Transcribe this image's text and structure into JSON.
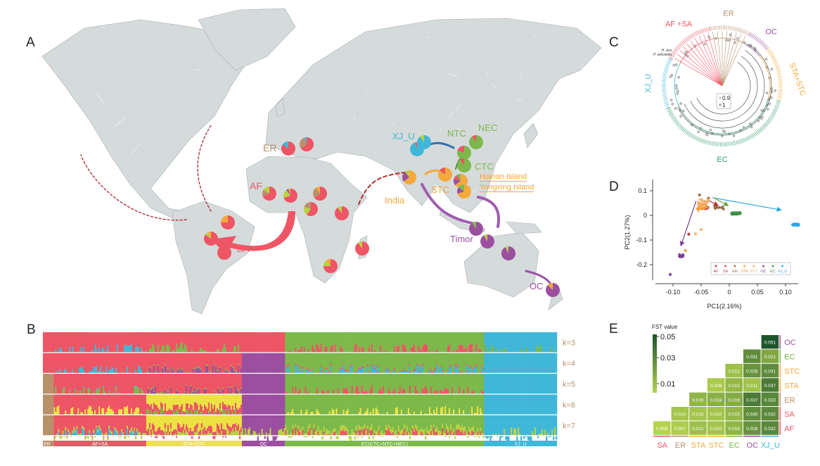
{
  "colors": {
    "AF": "#ee5565",
    "SA": "#ee5565",
    "ER": "#b8906a",
    "STA": "#f4a93a",
    "STC": "#f4a93a",
    "OC": "#9c4fa0",
    "EC": "#7cb84a",
    "XJ_U": "#3fb7d8",
    "yellow": "#ece342",
    "lime": "#b9d23f",
    "brown": "#b08a66",
    "land": "#d5dadb"
  },
  "panels": {
    "A": "A",
    "B": "B",
    "C": "C",
    "D": "D",
    "E": "E"
  },
  "map": {
    "labels": {
      "ER": "ER",
      "AF": "AF",
      "SA": "SA",
      "XJ_U": "XJ_U",
      "NTC": "NTC",
      "NEC": "NEC",
      "CTC": "CTC",
      "STC": "STC",
      "hainan": "Hainan Island",
      "yongxing": "Yongxing Island",
      "india": "India",
      "timor": "Timor",
      "OC": "OC"
    },
    "pies": [
      {
        "region": "ER",
        "slices": [
          [
            "AF",
            0.85
          ],
          [
            "XJ_U",
            0.15
          ]
        ]
      },
      {
        "region": "ER",
        "slices": [
          [
            "AF",
            0.65
          ],
          [
            "ER",
            0.3
          ],
          [
            "XJ_U",
            0.05
          ]
        ]
      },
      {
        "region": "AF",
        "slices": [
          [
            "AF",
            0.7
          ],
          [
            "ER",
            0.15
          ],
          [
            "lime",
            0.15
          ]
        ]
      },
      {
        "region": "AF",
        "slices": [
          [
            "AF",
            0.7
          ],
          [
            "lime",
            0.2
          ],
          [
            "OC",
            0.05
          ],
          [
            "STA",
            0.05
          ]
        ]
      },
      {
        "region": "AF",
        "slices": [
          [
            "AF",
            0.65
          ],
          [
            "ER",
            0.25
          ],
          [
            "STA",
            0.1
          ]
        ]
      },
      {
        "region": "AF",
        "slices": [
          [
            "AF",
            0.6
          ],
          [
            "lime",
            0.2
          ],
          [
            "ER",
            0.2
          ]
        ]
      },
      {
        "region": "AF",
        "slices": [
          [
            "AF",
            0.9
          ],
          [
            "lime",
            0.1
          ]
        ]
      },
      {
        "region": "SA",
        "slices": [
          [
            "AF",
            0.75
          ],
          [
            "STA",
            0.25
          ]
        ]
      },
      {
        "region": "SA",
        "slices": [
          [
            "AF",
            0.85
          ],
          [
            "lime",
            0.08
          ],
          [
            "STA",
            0.07
          ]
        ]
      },
      {
        "region": "SA",
        "slices": [
          [
            "AF",
            1.0
          ]
        ]
      },
      {
        "region": "AF",
        "slices": [
          [
            "AF",
            0.9
          ],
          [
            "lime",
            0.1
          ]
        ]
      },
      {
        "region": "AF",
        "slices": [
          [
            "AF",
            0.75
          ],
          [
            "lime",
            0.15
          ],
          [
            "STA",
            0.1
          ]
        ]
      },
      {
        "region": "XJ_U",
        "slices": [
          [
            "XJ_U",
            0.95
          ],
          [
            "AF",
            0.05
          ]
        ]
      },
      {
        "region": "XJ_U",
        "slices": [
          [
            "XJ_U",
            0.9
          ],
          [
            "lime",
            0.1
          ]
        ]
      },
      {
        "region": "NEC",
        "slices": [
          [
            "EC",
            0.9
          ],
          [
            "AF",
            0.1
          ]
        ]
      },
      {
        "region": "NTC",
        "slices": [
          [
            "EC",
            0.8
          ],
          [
            "AF",
            0.2
          ]
        ]
      },
      {
        "region": "CTC",
        "slices": [
          [
            "EC",
            0.9
          ],
          [
            "AF",
            0.1
          ]
        ]
      },
      {
        "region": "STC",
        "slices": [
          [
            "STA",
            0.85
          ],
          [
            "AF",
            0.15
          ]
        ]
      },
      {
        "region": "STC",
        "slices": [
          [
            "STA",
            0.65
          ],
          [
            "OC",
            0.15
          ],
          [
            "AF",
            0.1
          ],
          [
            "EC",
            0.1
          ]
        ]
      },
      {
        "region": "STC",
        "slices": [
          [
            "STA",
            0.7
          ],
          [
            "OC",
            0.15
          ],
          [
            "EC",
            0.15
          ]
        ]
      },
      {
        "region": "India",
        "slices": [
          [
            "STA",
            0.65
          ],
          [
            "OC",
            0.25
          ],
          [
            "lime",
            0.1
          ]
        ]
      },
      {
        "region": "Timor",
        "slices": [
          [
            "OC",
            0.9
          ],
          [
            "EC",
            0.1
          ]
        ]
      },
      {
        "region": "OC",
        "slices": [
          [
            "OC",
            0.92
          ],
          [
            "lime",
            0.08
          ]
        ]
      },
      {
        "region": "OC",
        "slices": [
          [
            "OC",
            0.93
          ],
          [
            "lime",
            0.07
          ]
        ]
      },
      {
        "region": "OC",
        "slices": [
          [
            "OC",
            0.88
          ],
          [
            "STA",
            0.12
          ]
        ]
      }
    ]
  },
  "structure": {
    "k_labels": [
      "k=3",
      "k=4",
      "k=5",
      "k=6",
      "k=7"
    ],
    "groups": [
      {
        "label": "ER",
        "frac": 0.021,
        "color": "ER"
      },
      {
        "label": "AF+SA",
        "frac": 0.18,
        "color": "AF"
      },
      {
        "label": "STA+STC",
        "frac": 0.186,
        "color": "yellow"
      },
      {
        "label": "OC",
        "frac": 0.084,
        "color": "OC"
      },
      {
        "label": "EC(CTC+NTC+NEC)",
        "frac": 0.387,
        "color": "EC"
      },
      {
        "label": "XJ_U",
        "frac": 0.142,
        "color": "XJ_U"
      }
    ],
    "k": [
      [
        [
          [
            "AF",
            1
          ]
        ],
        [
          [
            "AF",
            0.97
          ],
          [
            "XJ_U",
            0.03
          ]
        ],
        [
          [
            "AF",
            0.88
          ],
          [
            "EC",
            0.12
          ]
        ],
        [
          [
            "AF",
            1
          ]
        ],
        [
          [
            "EC",
            0.92
          ],
          [
            "AF",
            0.08
          ]
        ],
        [
          [
            "XJ_U",
            0.98
          ],
          [
            "EC",
            0.02
          ]
        ]
      ],
      [
        [
          [
            "AF",
            1
          ]
        ],
        [
          [
            "AF",
            0.98
          ],
          [
            "XJ_U",
            0.02
          ]
        ],
        [
          [
            "AF",
            0.9
          ],
          [
            "EC",
            0.05
          ],
          [
            "OC",
            0.05
          ]
        ],
        [
          [
            "OC",
            1
          ]
        ],
        [
          [
            "EC",
            0.85
          ],
          [
            "AF",
            0.08
          ],
          [
            "XJ_U",
            0.07
          ]
        ],
        [
          [
            "XJ_U",
            1
          ]
        ]
      ],
      [
        [
          [
            "ER",
            1
          ]
        ],
        [
          [
            "AF",
            0.93
          ],
          [
            "XJ_U",
            0.04
          ],
          [
            "EC",
            0.03
          ]
        ],
        [
          [
            "AF",
            0.9
          ],
          [
            "EC",
            0.05
          ],
          [
            "OC",
            0.05
          ]
        ],
        [
          [
            "OC",
            1
          ]
        ],
        [
          [
            "EC",
            0.94
          ],
          [
            "AF",
            0.06
          ]
        ],
        [
          [
            "XJ_U",
            1
          ]
        ]
      ],
      [
        [
          [
            "ER",
            1
          ]
        ],
        [
          [
            "AF",
            0.9
          ],
          [
            "yellow",
            0.1
          ]
        ],
        [
          [
            "yellow",
            0.6
          ],
          [
            "AF",
            0.35
          ],
          [
            "EC",
            0.05
          ]
        ],
        [
          [
            "OC",
            1
          ]
        ],
        [
          [
            "EC",
            0.95
          ],
          [
            "yellow",
            0.05
          ]
        ],
        [
          [
            "XJ_U",
            1
          ]
        ]
      ],
      [
        [
          [
            "ER",
            1
          ]
        ],
        [
          [
            "AF",
            0.8
          ],
          [
            "lime",
            0.12
          ],
          [
            "XJ_U",
            0.08
          ]
        ],
        [
          [
            "yellow",
            0.6
          ],
          [
            "AF",
            0.3
          ],
          [
            "lime",
            0.1
          ]
        ],
        [
          [
            "OC",
            0.95
          ],
          [
            "lime",
            0.05
          ]
        ],
        [
          [
            "EC",
            0.7
          ],
          [
            "lime",
            0.22
          ],
          [
            "AF",
            0.08
          ]
        ],
        [
          [
            "XJ_U",
            0.93
          ],
          [
            "lime",
            0.07
          ]
        ]
      ]
    ]
  },
  "tree": {
    "clades": [
      {
        "label": "AF +SA",
        "color": "AF"
      },
      {
        "label": "ER",
        "color": "ER"
      },
      {
        "label": "OC",
        "color": "OC"
      },
      {
        "label": "STA+STC",
        "color": "STA"
      },
      {
        "label": "EC",
        "color": "#2e9a6a"
      },
      {
        "label": "XJ_U",
        "color": "XJ_U"
      }
    ],
    "outgroups": [
      "H. zea",
      "P. xylostella"
    ],
    "legend": [
      "0.9",
      "1"
    ]
  },
  "chart_data": [
    {
      "type": "scatter",
      "title": "",
      "xlabel": "PC1(2.16%)",
      "ylabel": "PC2(1.27%)",
      "xlim": [
        -0.13,
        0.135
      ],
      "ylim": [
        -0.25,
        0.14
      ],
      "xticks": [
        "-0.10",
        "-0.05",
        "0",
        "0.05",
        "0.10"
      ],
      "xtick_values": [
        -0.1,
        -0.05,
        0,
        0.05,
        0.1
      ],
      "yticks": [
        "0.1",
        "0",
        "-0.1",
        "-0.2"
      ],
      "ytick_values": [
        0.1,
        0,
        -0.1,
        -0.2
      ],
      "legend": [
        "AF",
        "SA",
        "ER",
        "STA",
        "STC",
        "OC",
        "EC",
        "XJ_U"
      ],
      "legend_position": "bottom-right",
      "series": [
        {
          "name": "AF",
          "color": "#c0303a",
          "center": [
            -0.045,
            0.03
          ],
          "spread": [
            0.006,
            0.01
          ],
          "n": 10,
          "extra": [
            [
              -0.072,
              -0.076
            ]
          ]
        },
        {
          "name": "SA",
          "color": "#e0455a",
          "center": [
            -0.043,
            0.035
          ],
          "spread": [
            0.006,
            0.01
          ],
          "n": 14
        },
        {
          "name": "ER",
          "color": "#9a6a3a",
          "center": [
            -0.018,
            0.03
          ],
          "spread": [
            0.008,
            0.005
          ],
          "n": 10,
          "extra": [
            [
              -0.053,
              0.083
            ],
            [
              -0.037,
              0.07
            ]
          ]
        },
        {
          "name": "STA",
          "color": "#f0a030",
          "center": [
            -0.048,
            0.04
          ],
          "spread": [
            0.008,
            0.015
          ],
          "n": 20,
          "extra": [
            [
              -0.078,
              -0.143
            ]
          ]
        },
        {
          "name": "STC",
          "color": "#f5b070",
          "center": [
            -0.046,
            0.05
          ],
          "spread": [
            0.008,
            0.015
          ],
          "n": 20,
          "extra": [
            [
              -0.06,
              -0.075
            ],
            [
              -0.05,
              -0.057
            ]
          ]
        },
        {
          "name": "OC",
          "color": "#7a3d9a",
          "center": [
            -0.085,
            -0.163
          ],
          "spread": [
            0.004,
            0.006
          ],
          "n": 12,
          "extra": [
            [
              -0.105,
              -0.24
            ]
          ]
        },
        {
          "name": "EC",
          "color": "#3f8f4a",
          "center": [
            0.012,
            0.008
          ],
          "spread": [
            0.008,
            0.004
          ],
          "n": 40
        },
        {
          "name": "XJ_U",
          "color": "#2aa8e0",
          "center": [
            0.118,
            -0.038
          ],
          "spread": [
            0.006,
            0.004
          ],
          "n": 35
        }
      ],
      "arrows": [
        {
          "from": [
            -0.03,
            0.072
          ],
          "to": [
            0.092,
            0.022
          ],
          "color": "#2aa8e0"
        },
        {
          "from": [
            -0.028,
            0.072
          ],
          "to": [
            -0.002,
            0.04
          ],
          "color": "#6aaa40"
        },
        {
          "from": [
            -0.036,
            0.06
          ],
          "to": [
            -0.02,
            0.04
          ],
          "color": "#c0303a"
        },
        {
          "from": [
            -0.059,
            0.058
          ],
          "to": [
            -0.086,
            -0.123
          ],
          "color": "#7a3d9a"
        },
        {
          "from": [
            -0.056,
            0.06
          ],
          "to": [
            -0.055,
            0.015
          ],
          "color": "#f0a030"
        }
      ]
    },
    {
      "type": "heatmap",
      "title": "FST value",
      "colorbar_ticks": [
        "0.05",
        "0.03",
        "0.01"
      ],
      "colorbar_range": [
        0.005,
        0.051
      ],
      "rows": [
        "OC",
        "EC",
        "STC",
        "STA",
        "ER",
        "SA",
        "AF"
      ],
      "columns": [
        "SA",
        "ER",
        "STA",
        "STC",
        "EC",
        "OC",
        "XJ_U"
      ],
      "values": [
        [
          null,
          null,
          null,
          null,
          null,
          null,
          0.051
        ],
        [
          null,
          null,
          null,
          null,
          null,
          0.031,
          0.021
        ],
        [
          null,
          null,
          null,
          null,
          0.012,
          0.028,
          0.031
        ],
        [
          null,
          null,
          null,
          0.008,
          0.015,
          0.011,
          0.037
        ],
        [
          null,
          null,
          0.016,
          0.018,
          0.019,
          0.037,
          0.033
        ],
        [
          null,
          0.01,
          0.01,
          0.01,
          0.015,
          0.03,
          0.032
        ],
        [
          0.005,
          0.007,
          0.012,
          0.01,
          0.016,
          0.028,
          0.032
        ]
      ],
      "labels": [
        [
          null,
          null,
          null,
          null,
          null,
          null,
          "0.051"
        ],
        [
          null,
          null,
          null,
          null,
          null,
          "0.031",
          "0.021"
        ],
        [
          null,
          null,
          null,
          null,
          "0.012",
          "0.028",
          "0.031"
        ],
        [
          null,
          null,
          null,
          "0.008",
          "0.015",
          "0.011",
          "0.037"
        ],
        [
          null,
          null,
          "0.016",
          "0.018",
          "0.019",
          "0.037",
          "0.033"
        ],
        [
          null,
          "0.010",
          "0.010",
          "0.010",
          "0.015",
          "0.030",
          "0.032"
        ],
        [
          "0.005",
          "0.007",
          "0.012",
          "0.010",
          "0.016",
          "0.028",
          "0.032"
        ]
      ],
      "label_colors": {
        "SA": "#ee5565",
        "ER": "#b8906a",
        "STA": "#f4a93a",
        "STC": "#f4a93a",
        "EC": "#7cb84a",
        "OC": "#9c4fa0",
        "XJ_U": "#3fb7d8",
        "AF": "#ee5565"
      }
    }
  ]
}
